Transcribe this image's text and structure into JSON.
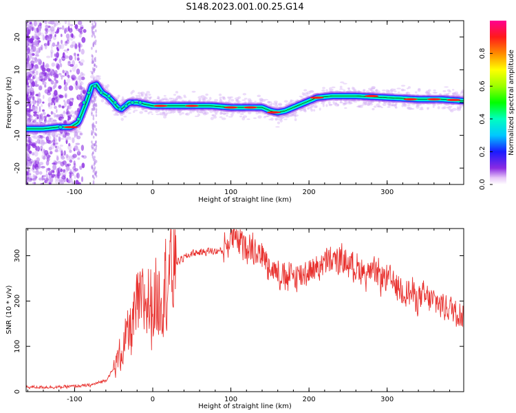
{
  "title": "S148.2023.001.00.25.G14",
  "chart_data": [
    {
      "type": "heatmap",
      "xlabel": "Height of straight line (km)",
      "ylabel": "Frequency (Hz)",
      "xlim": [
        -162,
        398
      ],
      "ylim": [
        -25,
        25
      ],
      "xticks": [
        -100,
        0,
        100,
        200,
        300
      ],
      "yticks": [
        -20,
        -10,
        0,
        10,
        20
      ],
      "colorbar": {
        "label": "Normalized spectral amplitude",
        "range": [
          0,
          1
        ],
        "ticks": [
          0.0,
          0.2,
          0.4,
          0.6,
          0.8
        ]
      },
      "ridge": {
        "x": [
          -162,
          -140,
          -120,
          -105,
          -95,
          -85,
          -78,
          -72,
          -65,
          -58,
          -50,
          -45,
          -40,
          -30,
          -20,
          -10,
          0,
          20,
          50,
          75,
          100,
          120,
          140,
          150,
          160,
          170,
          180,
          195,
          210,
          230,
          260,
          300,
          340,
          370,
          398
        ],
        "y": [
          -8,
          -8,
          -7.5,
          -7.5,
          -6,
          0,
          5,
          5.5,
          3,
          2,
          0,
          -1.5,
          -2,
          0,
          0,
          -0.5,
          -1,
          -1,
          -1,
          -1,
          -1.5,
          -1.5,
          -1.5,
          -2.5,
          -3,
          -2.5,
          -1.5,
          0,
          1.5,
          2,
          2,
          1.5,
          1,
          1,
          0.5
        ]
      }
    },
    {
      "type": "line",
      "xlabel": "Height of straight line (km)",
      "ylabel": "SNR (10 * v/v)",
      "xlim": [
        -162,
        398
      ],
      "ylim": [
        0,
        360
      ],
      "xticks": [
        -100,
        0,
        100,
        200,
        300
      ],
      "yticks": [
        0,
        100,
        200,
        300
      ],
      "color": "#e8312e",
      "envelope": {
        "x": [
          -162,
          -120,
          -80,
          -60,
          -50,
          -40,
          -30,
          -20,
          -10,
          0,
          10,
          20,
          30,
          50,
          70,
          90,
          100,
          110,
          130,
          150,
          170,
          190,
          210,
          230,
          250,
          270,
          300,
          320,
          340,
          360,
          380,
          398
        ],
        "y": [
          10,
          10,
          14,
          25,
          50,
          90,
          130,
          180,
          200,
          190,
          220,
          260,
          285,
          305,
          310,
          310,
          340,
          330,
          320,
          280,
          250,
          260,
          275,
          290,
          285,
          265,
          250,
          225,
          210,
          200,
          185,
          170
        ]
      }
    }
  ]
}
